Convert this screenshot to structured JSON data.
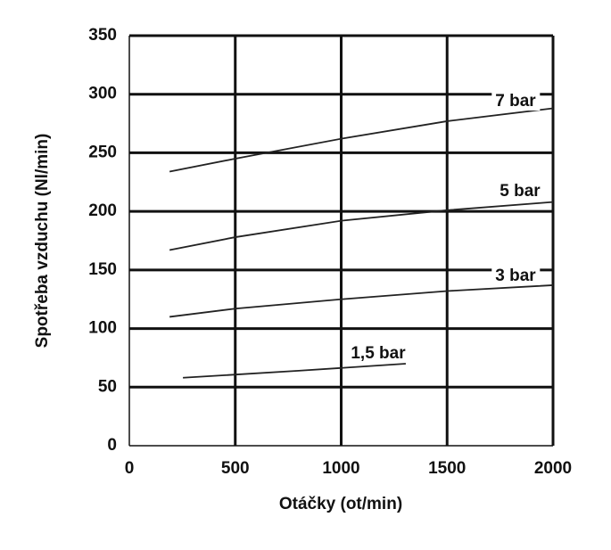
{
  "chart_data": {
    "type": "line",
    "x_label": "Otáčky (ot/min)",
    "y_label": "Spotřeba vzduchu (Nl/min)",
    "xlim": [
      0,
      2000
    ],
    "xticks": [
      0,
      500,
      1000,
      1500,
      2000
    ],
    "ylim": [
      0,
      350
    ],
    "yticks": [
      0,
      50,
      100,
      150,
      200,
      250,
      300,
      350
    ],
    "grid": true,
    "series": [
      {
        "name": "7 bar",
        "color": "#222222",
        "x": [
          190,
          500,
          1000,
          1500,
          2000
        ],
        "values": [
          234,
          245,
          262,
          277,
          288
        ]
      },
      {
        "name": "5 bar",
        "color": "#222222",
        "x": [
          190,
          500,
          1000,
          1500,
          2000
        ],
        "values": [
          167,
          178,
          192,
          201,
          208
        ]
      },
      {
        "name": "3 bar",
        "color": "#222222",
        "x": [
          190,
          500,
          1000,
          1500,
          2000
        ],
        "values": [
          110,
          117,
          125,
          132,
          137
        ]
      },
      {
        "name": "1,5 bar",
        "color": "#222222",
        "x": [
          253,
          800,
          1305
        ],
        "values": [
          58,
          64,
          70
        ]
      }
    ]
  }
}
